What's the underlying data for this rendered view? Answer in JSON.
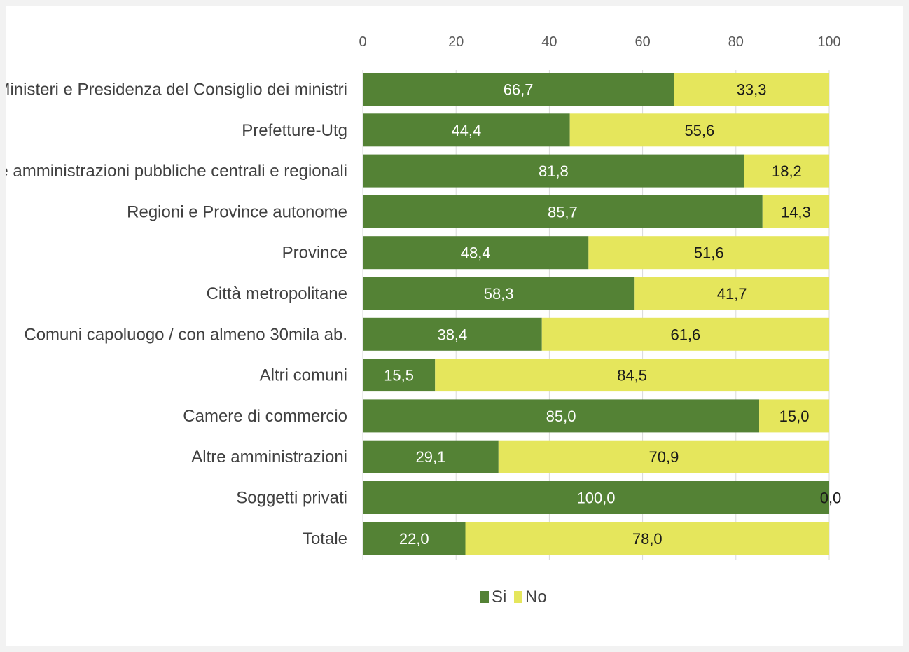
{
  "chart_data": {
    "type": "bar",
    "orientation": "horizontal",
    "stacked": true,
    "title": "",
    "xlabel": "",
    "ylabel": "",
    "xlim": [
      0,
      100
    ],
    "x_ticks": [
      0,
      20,
      40,
      60,
      80,
      100
    ],
    "x_axis_position": "top",
    "grid": true,
    "legend_position": "bottom",
    "categories": [
      "Ministeri e Presidenza del Consiglio dei ministri",
      "Prefetture-Utg",
      "Enti e amministrazioni pubbliche centrali e regionali",
      "Regioni e Province autonome",
      "Province",
      "Città metropolitane",
      "Comuni capoluogo / con almeno 30mila ab.",
      "Altri comuni",
      "Camere di commercio",
      "Altre amministrazioni",
      "Soggetti privati",
      "Totale"
    ],
    "series": [
      {
        "name": "Si",
        "color": "#548235",
        "values": [
          66.7,
          44.4,
          81.8,
          85.7,
          48.4,
          58.3,
          38.4,
          15.5,
          85.0,
          29.1,
          100.0,
          22.0
        ],
        "labels": [
          "66,7",
          "44,4",
          "81,8",
          "85,7",
          "48,4",
          "58,3",
          "38,4",
          "15,5",
          "85,0",
          "29,1",
          "100,0",
          "22,0"
        ]
      },
      {
        "name": "No",
        "color": "#e5e65c",
        "values": [
          33.3,
          55.6,
          18.2,
          14.3,
          51.6,
          41.7,
          61.6,
          84.5,
          15.0,
          70.9,
          0.0,
          78.0
        ],
        "labels": [
          "33,3",
          "55,6",
          "18,2",
          "14,3",
          "51,6",
          "41,7",
          "61,6",
          "84,5",
          "15,0",
          "70,9",
          "0,0",
          "78,0"
        ]
      }
    ]
  }
}
